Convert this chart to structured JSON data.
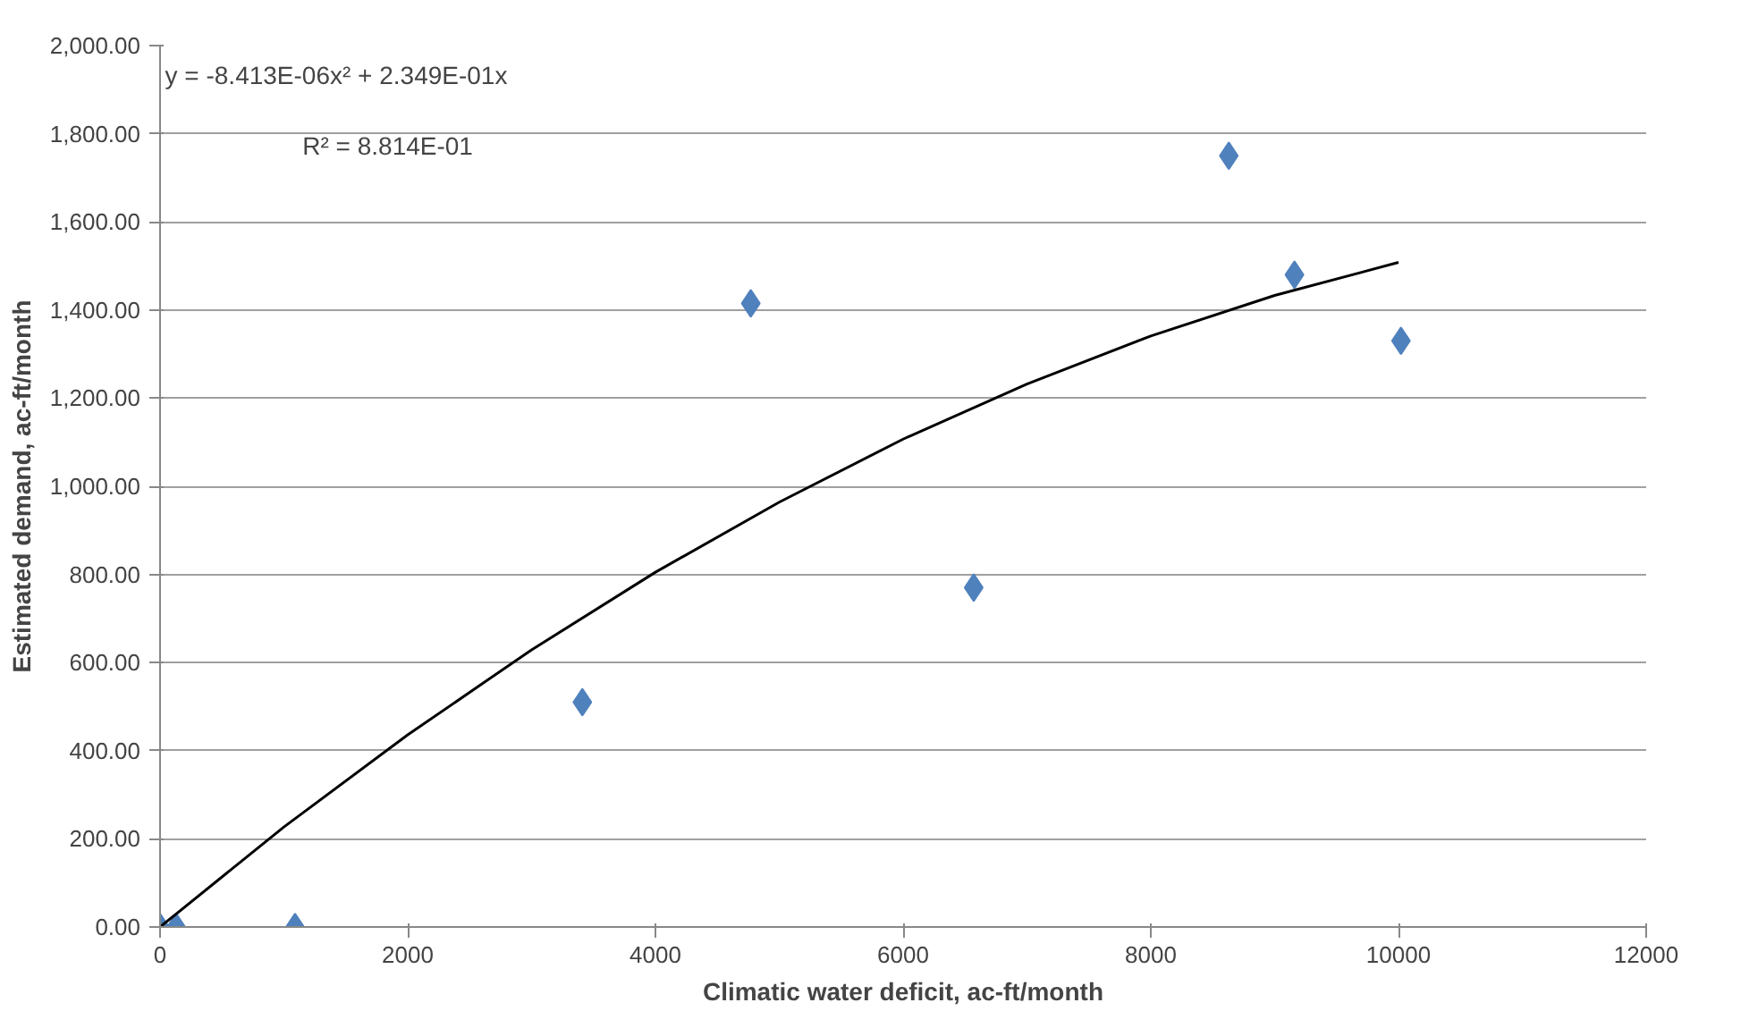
{
  "chart_data": {
    "type": "scatter",
    "xlabel": "Climatic water deficit, ac-ft/month",
    "ylabel": "Estimated demand, ac-ft/month",
    "series": [
      {
        "color": "#4f81bd",
        "marker": "diamond",
        "x": [
          0,
          130,
          1090,
          3410,
          4770,
          6570,
          8630,
          9160,
          10020
        ],
        "values": [
          0,
          0,
          0,
          510,
          1415,
          770,
          1750,
          1480,
          1330
        ]
      },
      {
        "type": "line",
        "color": "#000000",
        "marker": "none",
        "x": [
          0,
          1000,
          2000,
          3000,
          4000,
          5000,
          6000,
          7000,
          8000,
          9000,
          10000
        ],
        "values": [
          0,
          227,
          436,
          629,
          805,
          964,
          1107,
          1232,
          1341,
          1433,
          1508
        ]
      }
    ],
    "xlim": [
      0,
      12000
    ],
    "xticks": [
      0,
      2000,
      4000,
      6000,
      8000,
      10000,
      12000
    ],
    "ylim": [
      0,
      2000
    ],
    "yticks": [
      {
        "value": 0,
        "label": "0.00"
      },
      {
        "value": 200,
        "label": "200.00"
      },
      {
        "value": 400,
        "label": "400.00"
      },
      {
        "value": 600,
        "label": "600.00"
      },
      {
        "value": 800,
        "label": "800.00"
      },
      {
        "value": 1000,
        "label": "1,000.00"
      },
      {
        "value": 1200,
        "label": "1,200.00"
      },
      {
        "value": 1400,
        "label": "1,400.00"
      },
      {
        "value": 1600,
        "label": "1,600.00"
      },
      {
        "value": 1800,
        "label": "1,800.00"
      },
      {
        "value": 2000,
        "label": "2,000.00"
      }
    ],
    "grid": "y",
    "annotations": [
      "y = -8.413E-06x² + 2.349E-01x",
      "R² = 8.814E-01"
    ]
  }
}
